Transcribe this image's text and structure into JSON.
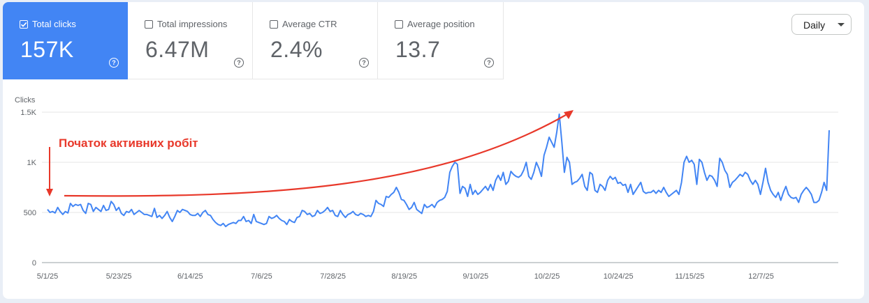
{
  "metrics": [
    {
      "label": "Total clicks",
      "value": "157K",
      "active": true
    },
    {
      "label": "Total impressions",
      "value": "6.47M",
      "active": false
    },
    {
      "label": "Average CTR",
      "value": "2.4%",
      "active": false
    },
    {
      "label": "Average position",
      "value": "13.7",
      "active": false
    }
  ],
  "help_glyph": "?",
  "period": {
    "selected": "Daily"
  },
  "chart_data": {
    "type": "line",
    "ylabel": "Clicks",
    "y_ticks": [
      "0",
      "500",
      "1K",
      "1.5K"
    ],
    "ylim": [
      0,
      1500
    ],
    "grid": true,
    "x_ticks": [
      "5/1/25",
      "5/23/25",
      "6/14/25",
      "7/6/25",
      "7/28/25",
      "8/19/25",
      "9/10/25",
      "10/2/25",
      "10/24/25",
      "11/15/25",
      "12/7/25"
    ],
    "x_range_days": [
      0,
      241
    ],
    "color": "#4285f4",
    "annotation": "Початок активних робіт",
    "annotation_color": "#e8382a",
    "series": [
      {
        "values": [
          530,
          500,
          510,
          495,
          550,
          510,
          480,
          510,
          495,
          590,
          560,
          580,
          570,
          580,
          520,
          490,
          590,
          580,
          510,
          550,
          530,
          510,
          570,
          520,
          530,
          610,
          580,
          520,
          550,
          490,
          470,
          510,
          500,
          530,
          480,
          500,
          520,
          500,
          480,
          480,
          470,
          460,
          540,
          450,
          470,
          440,
          470,
          510,
          450,
          410,
          460,
          520,
          500,
          530,
          520,
          510,
          480,
          470,
          470,
          490,
          460,
          500,
          520,
          480,
          470,
          430,
          400,
          380,
          370,
          390,
          360,
          380,
          390,
          400,
          390,
          420,
          420,
          460,
          410,
          420,
          390,
          480,
          410,
          400,
          390,
          380,
          390,
          460,
          440,
          450,
          470,
          440,
          420,
          410,
          380,
          430,
          410,
          400,
          450,
          460,
          520,
          510,
          480,
          490,
          460,
          470,
          520,
          490,
          500,
          520,
          550,
          510,
          520,
          470,
          460,
          520,
          480,
          450,
          480,
          490,
          510,
          480,
          470,
          490,
          480,
          460,
          470,
          460,
          510,
          620,
          590,
          580,
          560,
          660,
          650,
          680,
          700,
          750,
          700,
          630,
          620,
          580,
          530,
          550,
          600,
          530,
          510,
          490,
          580,
          550,
          560,
          580,
          550,
          600,
          620,
          630,
          650,
          710,
          900,
          960,
          1000,
          980,
          690,
          760,
          740,
          660,
          780,
          680,
          720,
          680,
          700,
          730,
          760,
          720,
          780,
          720,
          820,
          870,
          820,
          900,
          780,
          810,
          910,
          880,
          860,
          850,
          870,
          920,
          1000,
          860,
          830,
          900,
          1000,
          940,
          860,
          1070,
          1150,
          1250,
          1200,
          1150,
          1300,
          1480,
          1200,
          900,
          1050,
          1000,
          780,
          800,
          810,
          840,
          880,
          760,
          720,
          900,
          880,
          720,
          700,
          780,
          760,
          720,
          820,
          860,
          830,
          850,
          790,
          800,
          770,
          780,
          700,
          780,
          680,
          720,
          760,
          800,
          710,
          690,
          700,
          700,
          720,
          690,
          720,
          700,
          750,
          700,
          660,
          680,
          700,
          720,
          680,
          800,
          1000,
          1060,
          1000,
          1020,
          980,
          780,
          1030,
          1000,
          900,
          820,
          870,
          860,
          820,
          760,
          1040,
          1000,
          920,
          880,
          750,
          800,
          820,
          850,
          880,
          860,
          900,
          880,
          820,
          780,
          820,
          780,
          680,
          800,
          940,
          800,
          720,
          680,
          650,
          700,
          620,
          700,
          760,
          680,
          650,
          640,
          650,
          600,
          680,
          720,
          750,
          720,
          680,
          600,
          600,
          620,
          700,
          800,
          720,
          1320
        ]
      }
    ]
  }
}
